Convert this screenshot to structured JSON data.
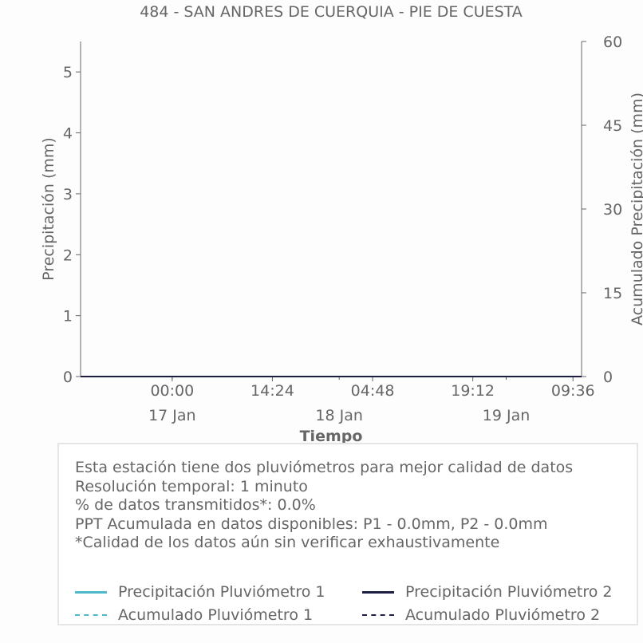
{
  "chart_data": {
    "type": "line",
    "title": "484 - SAN ANDRES DE CUERQUIA - PIE DE CUESTA",
    "xlabel": "Tiempo",
    "ylabel": "Precipitación (mm)",
    "y2label": "Acumulado Precipitación (mm)",
    "xlim": [
      "2024-01-16 10:50",
      "2024-01-19 10:50"
    ],
    "ylim": [
      0,
      5.5
    ],
    "y2lim": [
      0,
      60
    ],
    "yticks": [
      "0",
      "1",
      "2",
      "3",
      "4",
      "5"
    ],
    "y2ticks": [
      "0",
      "15",
      "30",
      "45",
      "60"
    ],
    "xticks": [
      {
        "time": "2024-01-17 00:00",
        "label": "00:00",
        "sublabel": "17 Jan"
      },
      {
        "time": "2024-01-17 14:24",
        "label": "14:24",
        "sublabel": ""
      },
      {
        "time": "2024-01-18 04:48",
        "label": "04:48",
        "sublabel": ""
      },
      {
        "time": "2024-01-18 19:12",
        "label": "19:12",
        "sublabel": ""
      },
      {
        "time": "2024-01-19 09:36",
        "label": "09:36",
        "sublabel": ""
      }
    ],
    "date_labels": [
      {
        "time": "2024-01-17 00:00",
        "label": "17 Jan"
      },
      {
        "time": "2024-01-18 00:00",
        "label": "18 Jan"
      },
      {
        "time": "2024-01-19 00:00",
        "label": "19 Jan"
      }
    ],
    "grid": false,
    "legend": "bottom",
    "x": [
      "2024-01-16 10:50",
      "2024-01-19 10:50"
    ],
    "series": [
      {
        "name": "Precipitación Pluviómetro 1",
        "axis": "left",
        "style": "solid",
        "color": "#4cb8c8",
        "values": [
          0,
          0
        ]
      },
      {
        "name": "Precipitación Pluviómetro 2",
        "axis": "left",
        "style": "solid",
        "color": "#1c1e44",
        "values": [
          0,
          0
        ]
      },
      {
        "name": "Acumulado Pluviómetro 1",
        "axis": "right",
        "style": "dashed",
        "color": "#4cb8c8",
        "values": [
          0,
          0
        ]
      },
      {
        "name": "Acumulado Pluviómetro 2",
        "axis": "right",
        "style": "dashed",
        "color": "#1c1e44",
        "values": [
          0,
          0
        ]
      }
    ]
  },
  "info": [
    "Esta estación tiene dos pluviómetros para mejor calidad de datos",
    "Resolución temporal: 1 minuto",
    "% de datos transmitidos*: 0.0%",
    "PPT Acumulada en datos disponibles: P1 - 0.0mm, P2 - 0.0mm",
    "*Calidad de los datos aún sin verificar exhaustivamente"
  ]
}
